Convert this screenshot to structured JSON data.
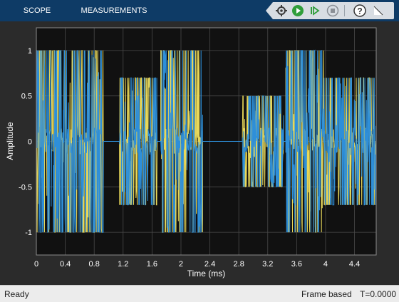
{
  "ribbon": {
    "tabs": [
      {
        "label": "SCOPE"
      },
      {
        "label": "MEASUREMENTS"
      }
    ]
  },
  "toolbar": {
    "icons": [
      "settings-gear-icon",
      "run-icon",
      "step-forward-icon",
      "stop-icon",
      "help-icon",
      "pin-icon"
    ]
  },
  "colors": {
    "ribbon": "#0e3b66",
    "plot_bg": "#111111",
    "figure_bg": "#2b2b2b",
    "series1": "#2e8fd9",
    "series2": "#e8d85a",
    "grid": "#4a4a4a"
  },
  "chart_data": {
    "type": "line",
    "title": "",
    "xlabel": "Time (ms)",
    "ylabel": "Amplitude",
    "xlim": [
      0,
      4.7
    ],
    "ylim": [
      -1.25,
      1.25
    ],
    "xticks": [
      0,
      0.4,
      0.8,
      1.2,
      1.6,
      2,
      2.4,
      2.8,
      3.2,
      3.6,
      4,
      4.4
    ],
    "xtick_labels": [
      "0",
      "0.4",
      "0.8",
      "1.2",
      "1.6",
      "2",
      "2.4",
      "2.8",
      "3.2",
      "3.6",
      "4",
      "4.4"
    ],
    "yticks": [
      1,
      0.5,
      0,
      -0.5,
      -1
    ],
    "ytick_labels": [
      "1",
      "0.5",
      "0",
      "-0.5",
      "-1"
    ],
    "grid": true,
    "bursts": [
      {
        "x_start": 0.0,
        "x_end": 0.93,
        "amplitude": 1.0
      },
      {
        "x_start": 1.15,
        "x_end": 1.67,
        "amplitude": 0.7
      },
      {
        "x_start": 1.72,
        "x_end": 2.3,
        "amplitude": 1.0
      },
      {
        "x_start": 2.85,
        "x_end": 3.42,
        "amplitude": 0.5
      },
      {
        "x_start": 3.45,
        "x_end": 3.98,
        "amplitude": 1.0
      },
      {
        "x_start": 3.98,
        "x_end": 4.7,
        "amplitude": 0.7
      }
    ],
    "series": [
      {
        "color": "#2e8fd9"
      },
      {
        "color": "#e8d85a"
      }
    ]
  },
  "status": {
    "left": "Ready",
    "mode": "Frame based",
    "time": "T=0.0000"
  }
}
